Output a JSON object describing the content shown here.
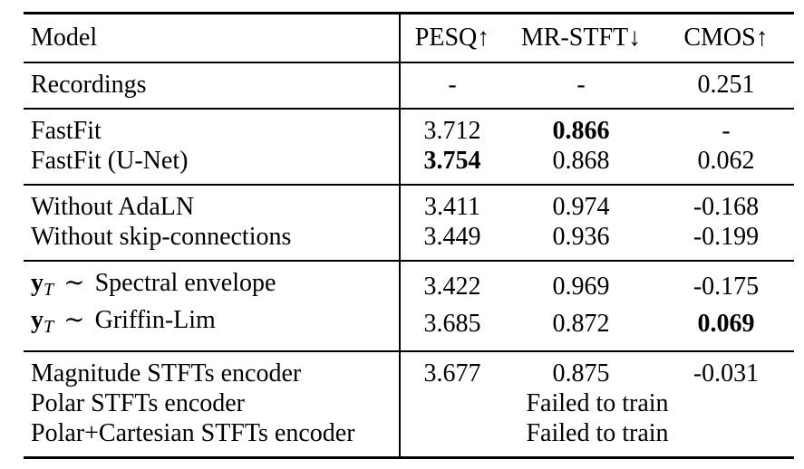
{
  "page": {
    "background": "#ffffff",
    "text_color": "#000000"
  },
  "table": {
    "columns": [
      {
        "id": "model",
        "label": "Model"
      },
      {
        "id": "pesq",
        "label": "PESQ↑"
      },
      {
        "id": "mrstft",
        "label": "MR-STFT↓"
      },
      {
        "id": "cmos",
        "label": "CMOS↑"
      }
    ],
    "sections": [
      {
        "name": "recordings",
        "rows": [
          {
            "model": {
              "text": "Recordings"
            },
            "values": [
              {
                "text": "-"
              },
              {
                "text": "-"
              },
              {
                "text": "0.251"
              }
            ]
          }
        ]
      },
      {
        "name": "fastfit",
        "rows": [
          {
            "model": {
              "text": "FastFit"
            },
            "values": [
              {
                "text": "3.712"
              },
              {
                "text": "0.866",
                "bold": true
              },
              {
                "text": "-"
              }
            ]
          },
          {
            "model": {
              "text": "FastFit (U-Net)"
            },
            "values": [
              {
                "text": "3.754",
                "bold": true
              },
              {
                "text": "0.868"
              },
              {
                "text": "0.062"
              }
            ]
          }
        ]
      },
      {
        "name": "ablation-architecture",
        "rows": [
          {
            "model": {
              "text": "Without AdaLN"
            },
            "values": [
              {
                "text": "3.411"
              },
              {
                "text": "0.974"
              },
              {
                "text": "-0.168"
              }
            ]
          },
          {
            "model": {
              "text": "Without skip-connections"
            },
            "values": [
              {
                "text": "3.449"
              },
              {
                "text": "0.936"
              },
              {
                "text": "-0.199"
              }
            ]
          }
        ]
      },
      {
        "name": "ablation-prior",
        "rows": [
          {
            "model": {
              "math_var": "y",
              "math_sub": "T",
              "math_rel": "∼",
              "text": "Spectral envelope"
            },
            "values": [
              {
                "text": "3.422"
              },
              {
                "text": "0.969"
              },
              {
                "text": "-0.175"
              }
            ]
          },
          {
            "model": {
              "math_var": "y",
              "math_sub": "T",
              "math_rel": "∼",
              "text": "Griffin-Lim"
            },
            "values": [
              {
                "text": "3.685"
              },
              {
                "text": "0.872"
              },
              {
                "text": "0.069",
                "bold": true
              }
            ]
          }
        ]
      },
      {
        "name": "ablation-encoder",
        "rows": [
          {
            "model": {
              "text": "Magnitude STFTs encoder"
            },
            "values": [
              {
                "text": "3.677"
              },
              {
                "text": "0.875"
              },
              {
                "text": "-0.031"
              }
            ]
          },
          {
            "model": {
              "text": "Polar STFTs encoder"
            },
            "span_text": "Failed to train"
          },
          {
            "model": {
              "text": "Polar+Cartesian STFTs encoder"
            },
            "span_text": "Failed to train"
          }
        ]
      }
    ]
  }
}
